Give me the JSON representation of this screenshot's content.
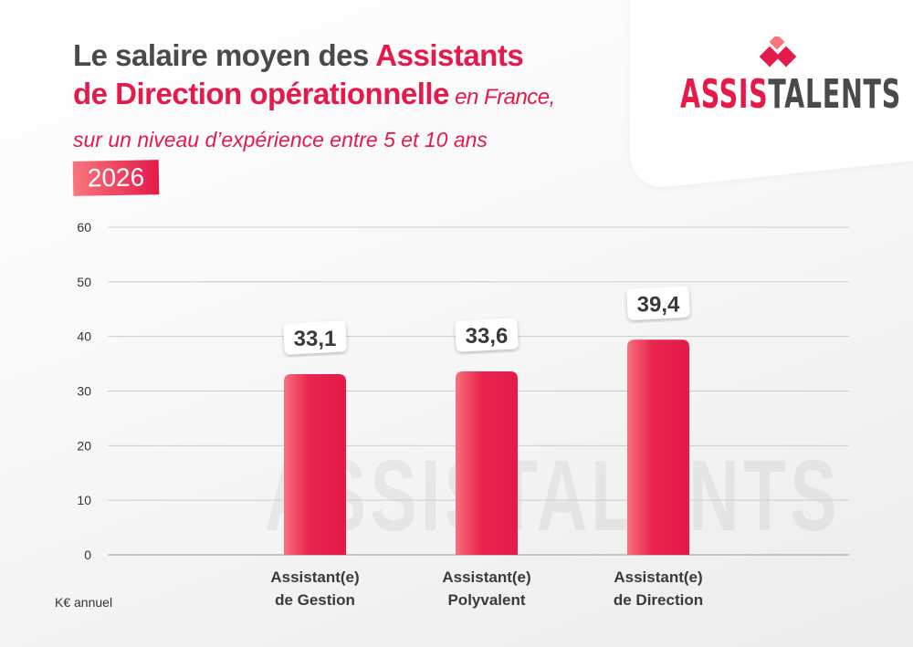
{
  "header": {
    "title_part1": "Le salaire moyen des ",
    "title_part2": "Assistants",
    "title_part3": "de Direction opérationnelle",
    "title_part4": " en France,",
    "subtitle": "sur un niveau d’expérience entre 5 et 10 ans",
    "year": "2026"
  },
  "logo": {
    "text_a": "ASSIS",
    "text_b": "TALENTS"
  },
  "unit_label": "K€ annuel",
  "colors": {
    "accent": "#e5194a",
    "dark": "#4a4a4c"
  },
  "chart_data": {
    "type": "bar",
    "categories": [
      [
        "Assistant(e)",
        "de Gestion"
      ],
      [
        "Assistant(e)",
        "Polyvalent"
      ],
      [
        "Assistant(e)",
        "de Direction"
      ]
    ],
    "values": [
      33.1,
      33.6,
      39.4
    ],
    "value_labels": [
      "33,1",
      "33,6",
      "39,4"
    ],
    "yticks": [
      "0",
      "10",
      "20",
      "30",
      "40",
      "50",
      "60"
    ],
    "ylim": [
      0,
      60
    ],
    "grid": true,
    "ylabel": "K€ annuel"
  }
}
